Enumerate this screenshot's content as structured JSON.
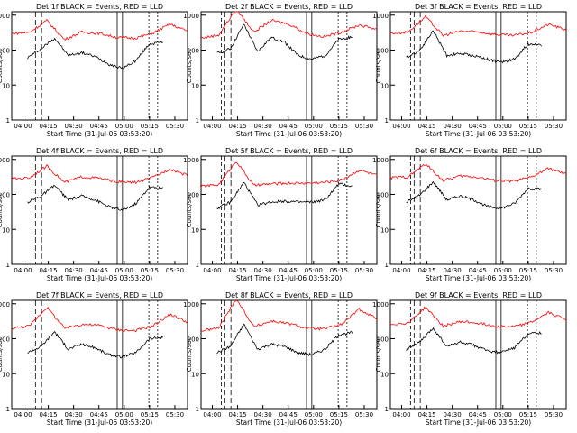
{
  "figure": {
    "xlabel": "Start Time (31-Jul-06 03:53:20)",
    "ylabel": "Counts/sec",
    "x_tick_labels": [
      "04:00",
      "04:15",
      "04:30",
      "04:45",
      "05:00",
      "05:15",
      "05:30"
    ],
    "y_tick_labels": [
      "1",
      "10",
      "100",
      "1000"
    ],
    "colors": {
      "events": "#000000",
      "lld": "#ff0000"
    }
  },
  "chart_data": [
    {
      "type": "line",
      "title": "Det 1f BLACK = Events, RED = LLD",
      "ylim": [
        1,
        1000
      ],
      "scale": "log",
      "series": [
        {
          "values": [
            60,
            110,
            220,
            70,
            85,
            65,
            40,
            30,
            50,
            150,
            170
          ]
        },
        {
          "values": [
            300,
            320,
            700,
            200,
            330,
            300,
            230,
            220,
            300,
            550,
            350
          ]
        }
      ]
    },
    {
      "type": "line",
      "title": "Det 2f BLACK = Events, RED = LLD",
      "ylim": [
        1,
        1000
      ],
      "scale": "log",
      "series": [
        {
          "values": [
            80,
            110,
            550,
            90,
            230,
            170,
            70,
            55,
            70,
            200,
            240
          ]
        },
        {
          "values": [
            220,
            270,
            1500,
            330,
            700,
            560,
            300,
            240,
            330,
            520,
            400
          ]
        }
      ]
    },
    {
      "type": "line",
      "title": "Det 3f BLACK = Events, RED = LLD",
      "ylim": [
        1,
        1000
      ],
      "scale": "log",
      "series": [
        {
          "values": [
            60,
            100,
            360,
            70,
            80,
            70,
            55,
            45,
            55,
            150,
            140
          ]
        },
        {
          "values": [
            300,
            330,
            900,
            260,
            350,
            330,
            280,
            260,
            320,
            550,
            380
          ]
        }
      ]
    },
    {
      "type": "line",
      "title": "Det 4f BLACK = Events, RED = LLD",
      "ylim": [
        1,
        1000
      ],
      "scale": "log",
      "series": [
        {
          "values": [
            60,
            90,
            180,
            70,
            90,
            70,
            45,
            35,
            55,
            160,
            150
          ]
        },
        {
          "values": [
            280,
            300,
            650,
            220,
            320,
            290,
            230,
            220,
            300,
            540,
            350
          ]
        }
      ]
    },
    {
      "type": "line",
      "title": "Det 5f BLACK = Events, RED = LLD",
      "ylim": [
        1,
        1000
      ],
      "scale": "log",
      "series": [
        {
          "values": [
            40,
            60,
            220,
            50,
            60,
            65,
            60,
            60,
            70,
            200,
            170
          ]
        },
        {
          "values": [
            170,
            190,
            900,
            180,
            200,
            210,
            210,
            220,
            260,
            500,
            350
          ]
        }
      ]
    },
    {
      "type": "line",
      "title": "Det 6f BLACK = Events, RED = LLD",
      "ylim": [
        1,
        1000
      ],
      "scale": "log",
      "series": [
        {
          "values": [
            60,
            95,
            230,
            70,
            90,
            70,
            45,
            40,
            55,
            150,
            140
          ]
        },
        {
          "values": [
            300,
            320,
            750,
            250,
            340,
            310,
            250,
            240,
            310,
            560,
            370
          ]
        }
      ]
    },
    {
      "type": "line",
      "title": "Det 7f BLACK = Events, RED = LLD",
      "ylim": [
        1,
        1000
      ],
      "scale": "log",
      "series": [
        {
          "values": [
            40,
            60,
            160,
            50,
            70,
            55,
            35,
            30,
            40,
            100,
            110
          ]
        },
        {
          "values": [
            200,
            230,
            800,
            200,
            260,
            240,
            180,
            170,
            230,
            500,
            300
          ]
        }
      ]
    },
    {
      "type": "line",
      "title": "Det 8f BLACK = Events, RED = LLD",
      "ylim": [
        1,
        1000
      ],
      "scale": "log",
      "series": [
        {
          "values": [
            40,
            60,
            260,
            50,
            70,
            60,
            40,
            35,
            50,
            130,
            150
          ]
        },
        {
          "values": [
            170,
            200,
            1400,
            220,
            320,
            270,
            200,
            190,
            260,
            700,
            380
          ]
        }
      ]
    },
    {
      "type": "line",
      "title": "Det 9f BLACK = Events, RED = LLD",
      "ylim": [
        1,
        1000
      ],
      "scale": "log",
      "series": [
        {
          "values": [
            50,
            80,
            200,
            60,
            80,
            65,
            45,
            40,
            55,
            140,
            150
          ]
        },
        {
          "values": [
            260,
            280,
            800,
            230,
            310,
            280,
            230,
            220,
            290,
            560,
            360
          ]
        }
      ]
    }
  ]
}
